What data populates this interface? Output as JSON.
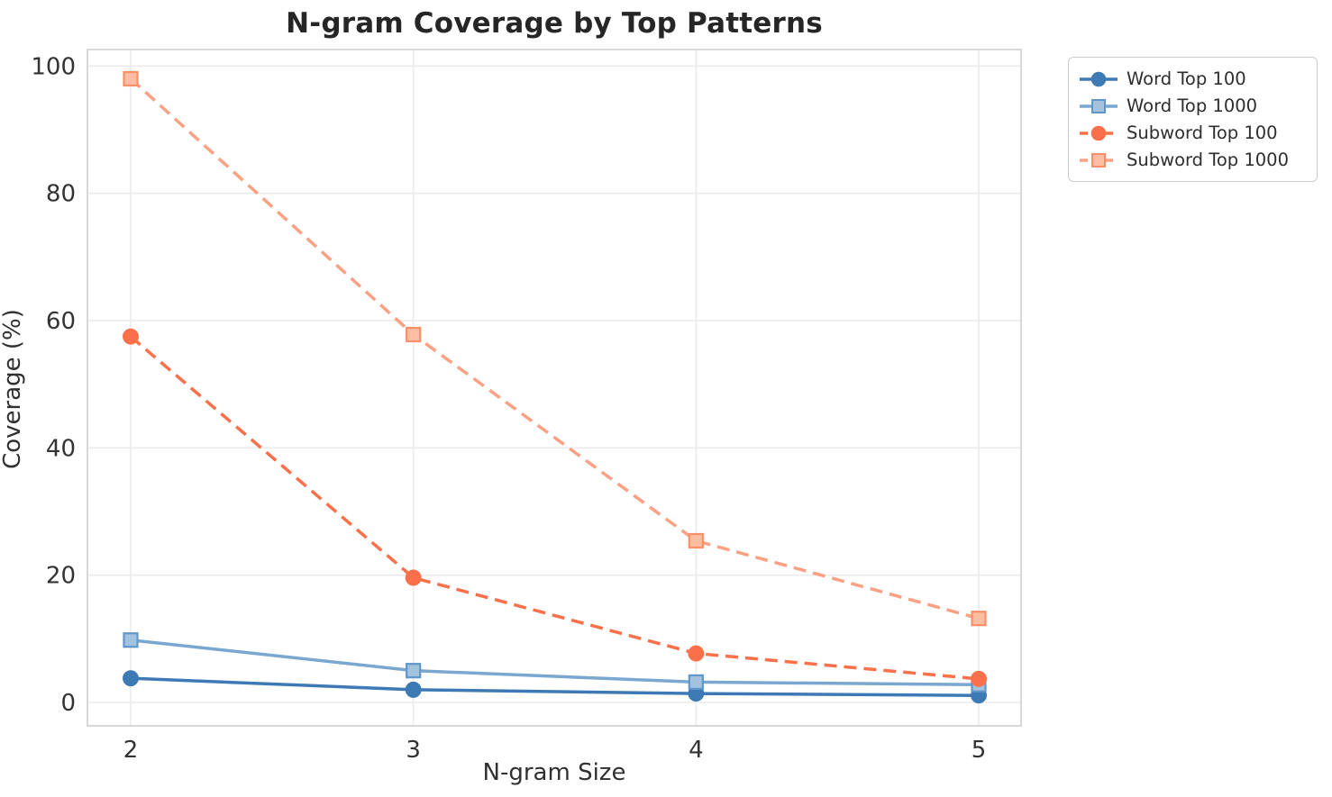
{
  "chart_data": {
    "type": "line",
    "title": "N-gram Coverage by Top Patterns",
    "xlabel": "N-gram Size",
    "ylabel": "Coverage (%)",
    "x": [
      2,
      3,
      4,
      5
    ],
    "x_tick_labels": [
      "2",
      "3",
      "4",
      "5"
    ],
    "y_ticks": [
      0,
      20,
      40,
      60,
      80,
      100
    ],
    "ylim": [
      -3.7,
      102.6
    ],
    "grid": true,
    "legend_position": "upper right, outside plot",
    "series": [
      {
        "name": "Word Top 100",
        "values": [
          3.8,
          2.0,
          1.4,
          1.1
        ],
        "color": "#3d7ab5",
        "marker": "circle",
        "marker_fill": "#3d7ab5",
        "marker_stroke": "#3d7ab5",
        "line_style": "solid"
      },
      {
        "name": "Word Top 1000",
        "values": [
          9.8,
          5.0,
          3.2,
          2.8
        ],
        "color": "#7aa7d0",
        "marker": "square",
        "marker_fill": "#a3c2de",
        "marker_stroke": "#6096c8",
        "line_style": "solid"
      },
      {
        "name": "Subword Top 100",
        "values": [
          57.5,
          19.6,
          7.7,
          3.7
        ],
        "color": "#f9704a",
        "marker": "circle",
        "marker_fill": "#f9704a",
        "marker_stroke": "#f9704a",
        "line_style": "dashed"
      },
      {
        "name": "Subword Top 1000",
        "values": [
          98.0,
          57.8,
          25.4,
          13.2
        ],
        "color": "#fba183",
        "marker": "square",
        "marker_fill": "#fcbda2",
        "marker_stroke": "#fa8f68",
        "line_style": "dashed"
      }
    ],
    "style": {
      "background": "#ffffff",
      "grid_color": "#ebebeb",
      "spine_color": "#d4d4d4",
      "tick_color": "#333333",
      "line_width": 3.5,
      "dash_pattern": "14 8"
    }
  }
}
